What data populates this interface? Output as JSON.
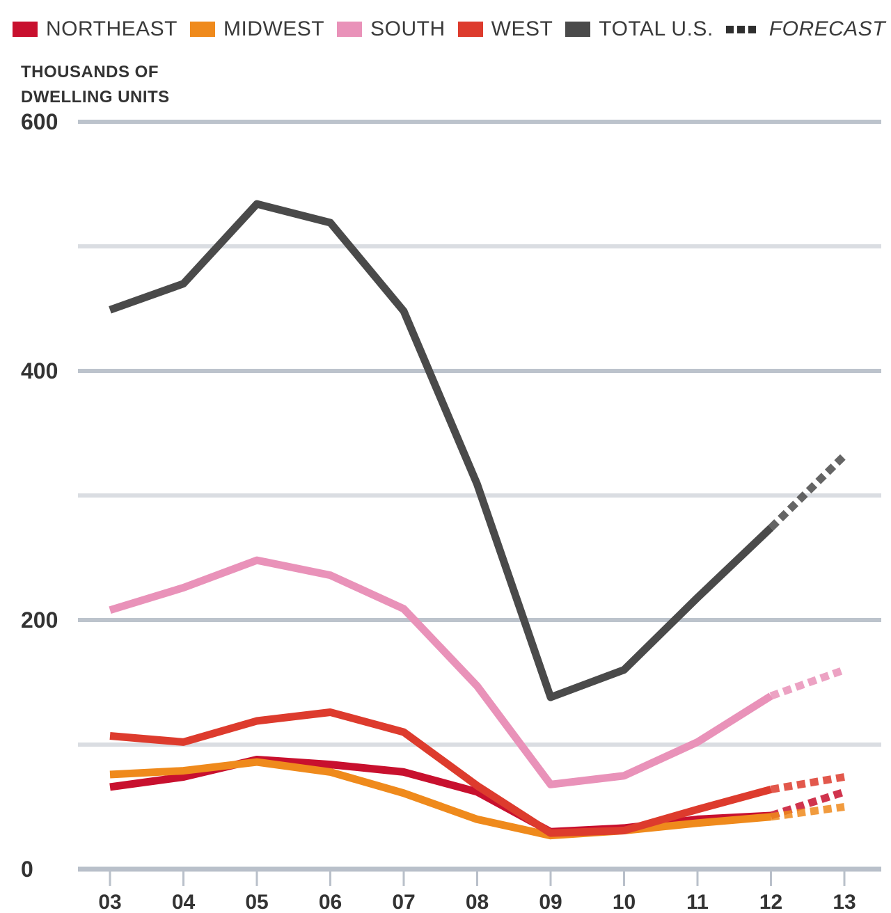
{
  "chart_data": {
    "type": "line",
    "ylabel": "THOUSANDS OF DWELLING UNITS",
    "ylabel_lines": [
      "THOUSANDS OF",
      "DWELLING UNITS"
    ],
    "x": [
      "03",
      "04",
      "05",
      "06",
      "07",
      "08",
      "09",
      "10",
      "11",
      "12",
      "13"
    ],
    "ylim": [
      0,
      600
    ],
    "yticks": [
      0,
      200,
      400,
      600
    ],
    "gridlines": [
      0,
      100,
      200,
      300,
      400,
      500,
      600
    ],
    "forecast_from": "12",
    "forecast_label": "FORECAST",
    "legend_position": "top",
    "series": [
      {
        "name": "NORTHEAST",
        "color": "#c8102e",
        "values": [
          66,
          74,
          88,
          84,
          78,
          62,
          30,
          33,
          40,
          43,
          62
        ]
      },
      {
        "name": "MIDWEST",
        "color": "#ef8a1c",
        "values": [
          76,
          79,
          86,
          78,
          61,
          40,
          27,
          31,
          37,
          42,
          50
        ]
      },
      {
        "name": "SOUTH",
        "color": "#e992b9",
        "values": [
          208,
          226,
          248,
          236,
          209,
          147,
          68,
          75,
          102,
          139,
          160
        ]
      },
      {
        "name": "WEST",
        "color": "#dd3b2d",
        "values": [
          107,
          102,
          119,
          126,
          110,
          67,
          29,
          31,
          48,
          64,
          74
        ]
      },
      {
        "name": "TOTAL U.S.",
        "color": "#4a4a4a",
        "values": [
          449,
          470,
          534,
          519,
          448,
          309,
          138,
          160,
          218,
          274,
          332
        ]
      }
    ]
  }
}
